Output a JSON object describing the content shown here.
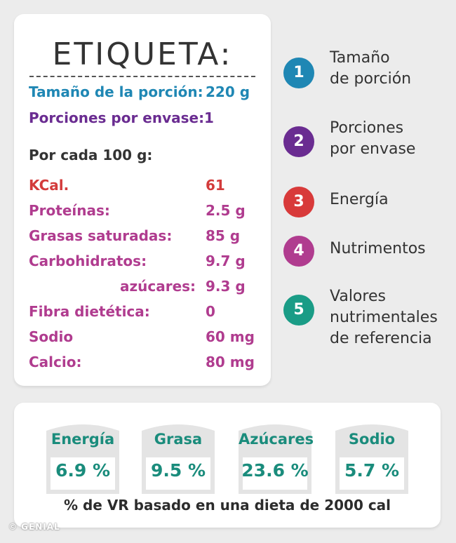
{
  "label": {
    "title": "ETIQUETA:",
    "serving_size": {
      "label": "Tamaño de la porción:",
      "value": "220 g"
    },
    "servings_per_container": {
      "label": "Porciones por envase:",
      "value": "1"
    },
    "per_100g": "Por cada 100 g:",
    "nutrients": [
      {
        "label": "KCal.",
        "value": "61",
        "color": "#d33b3b"
      },
      {
        "label": "Proteínas:",
        "value": "2.5 g",
        "color": "#b03c8f"
      },
      {
        "label": "Grasas saturadas:",
        "value": "85 g",
        "color": "#b03c8f"
      },
      {
        "label": "Carbohidratos:",
        "value": "9.7 g",
        "color": "#b03c8f"
      },
      {
        "label": "azúcares:",
        "value": "9.3 g",
        "color": "#b03c8f"
      },
      {
        "label": "Fibra dietética:",
        "value": "0",
        "color": "#b03c8f"
      },
      {
        "label": "Sodio",
        "value": "60 mg",
        "color": "#b03c8f"
      },
      {
        "label": "Calcio:",
        "value": "80 mg",
        "color": "#b03c8f"
      }
    ]
  },
  "legend": [
    {
      "number": "1",
      "line1": "Tamaño",
      "line2": "de porción",
      "line3": "",
      "color": "#1f87b4"
    },
    {
      "number": "2",
      "line1": "Porciones",
      "line2": "por envase",
      "line3": "",
      "color": "#6a2c91"
    },
    {
      "number": "3",
      "line1": "Energía",
      "line2": "",
      "line3": "",
      "color": "#d83a3a"
    },
    {
      "number": "4",
      "line1": "Nutrimentos",
      "line2": "",
      "line3": "",
      "color": "#b03c8f"
    },
    {
      "number": "5",
      "line1": "Valores",
      "line2": "nutrimentales",
      "line3": "de referencia",
      "color": "#1a9c86"
    }
  ],
  "gda": {
    "items": [
      {
        "name": "Energía",
        "percent": "6.9 %"
      },
      {
        "name": "Grasa",
        "percent": "9.5 %"
      },
      {
        "name": "Azúcares",
        "percent": "23.6 %"
      },
      {
        "name": "Sodio",
        "percent": "5.7 %"
      }
    ],
    "footnote": "% de VR basado en una dieta de 2000 cal"
  },
  "credit": "© GENIAL",
  "colors": {
    "background": "#ececec",
    "gda_fill": "#e4e4e4",
    "gda_text": "#1a8c7c"
  }
}
